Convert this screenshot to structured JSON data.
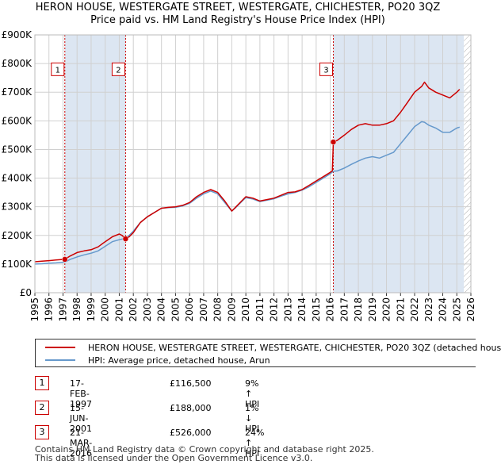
{
  "title_line1": "HERON HOUSE, WESTERGATE STREET, WESTERGATE, CHICHESTER, PO20 3QZ",
  "title_line2": "Price paid vs. HM Land Registry's House Price Index (HPI)",
  "colors": {
    "property": "#cc0000",
    "hpi": "#6699cc",
    "highlight": "#dce6f2",
    "grid": "#d0d0d0",
    "marker_border": "#cc0000",
    "hatch": "#b0b0b0"
  },
  "chart_data": {
    "type": "line",
    "x_range": [
      1995,
      2026
    ],
    "ylim": [
      0,
      900000
    ],
    "y_ticks": [
      {
        "value": 0,
        "label": "£0"
      },
      {
        "value": 100000,
        "label": "£100K"
      },
      {
        "value": 200000,
        "label": "£200K"
      },
      {
        "value": 300000,
        "label": "£300K"
      },
      {
        "value": 400000,
        "label": "£400K"
      },
      {
        "value": 500000,
        "label": "£500K"
      },
      {
        "value": 600000,
        "label": "£600K"
      },
      {
        "value": 700000,
        "label": "£700K"
      },
      {
        "value": 800000,
        "label": "£800K"
      },
      {
        "value": 900000,
        "label": "£900K"
      }
    ],
    "x_ticks": [
      "1995",
      "1996",
      "1997",
      "1998",
      "1999",
      "2000",
      "2001",
      "2002",
      "2003",
      "2004",
      "2005",
      "2006",
      "2007",
      "2008",
      "2009",
      "2010",
      "2011",
      "2012",
      "2013",
      "2014",
      "2015",
      "2016",
      "2017",
      "2018",
      "2019",
      "2020",
      "2021",
      "2022",
      "2023",
      "2024",
      "2025",
      "2026"
    ],
    "highlight_bands": [
      [
        1997.13,
        2001.45
      ],
      [
        2016.22,
        2025.5
      ]
    ],
    "hatch_from": 2025.5,
    "series": [
      {
        "name": "HERON HOUSE, WESTERGATE STREET, WESTERGATE, CHICHESTER, PO20 3QZ (detached hous",
        "x": [
          1995.0,
          1995.5,
          1996.0,
          1996.5,
          1997.13,
          1997.5,
          1998.0,
          1998.5,
          1999.0,
          1999.5,
          2000.0,
          2000.5,
          2001.0,
          2001.2,
          2001.45,
          2001.7,
          2002.0,
          2002.5,
          2003.0,
          2003.5,
          2004.0,
          2004.5,
          2005.0,
          2005.5,
          2006.0,
          2006.5,
          2007.0,
          2007.5,
          2008.0,
          2008.5,
          2009.0,
          2009.3,
          2009.7,
          2010.0,
          2010.5,
          2011.0,
          2011.5,
          2012.0,
          2012.5,
          2013.0,
          2013.5,
          2014.0,
          2014.5,
          2015.0,
          2015.5,
          2016.0,
          2016.15,
          2016.22,
          2016.5,
          2017.0,
          2017.5,
          2018.0,
          2018.5,
          2019.0,
          2019.5,
          2020.0,
          2020.5,
          2021.0,
          2021.5,
          2022.0,
          2022.5,
          2022.7,
          2023.0,
          2023.5,
          2024.0,
          2024.5,
          2025.0,
          2025.2
        ],
        "values": [
          108000,
          110000,
          112000,
          114000,
          116500,
          128000,
          140000,
          146000,
          150000,
          160000,
          178000,
          195000,
          205000,
          200000,
          188000,
          195000,
          210000,
          245000,
          265000,
          280000,
          295000,
          298000,
          300000,
          305000,
          315000,
          335000,
          350000,
          360000,
          350000,
          320000,
          285000,
          300000,
          320000,
          335000,
          330000,
          320000,
          325000,
          330000,
          340000,
          350000,
          352000,
          360000,
          375000,
          390000,
          405000,
          420000,
          425000,
          526000,
          532000,
          550000,
          570000,
          585000,
          590000,
          585000,
          585000,
          590000,
          600000,
          630000,
          665000,
          700000,
          720000,
          735000,
          715000,
          700000,
          690000,
          680000,
          700000,
          710000
        ]
      },
      {
        "name": "HPI: Average price, detached house, Arun",
        "x": [
          1995.0,
          1995.5,
          1996.0,
          1996.5,
          1997.13,
          1997.5,
          1998.0,
          1998.5,
          1999.0,
          1999.5,
          2000.0,
          2000.5,
          2001.0,
          2001.45,
          2001.7,
          2002.0,
          2002.5,
          2003.0,
          2003.5,
          2004.0,
          2004.5,
          2005.0,
          2005.5,
          2006.0,
          2006.5,
          2007.0,
          2007.5,
          2008.0,
          2008.5,
          2009.0,
          2009.3,
          2009.7,
          2010.0,
          2010.5,
          2011.0,
          2011.5,
          2012.0,
          2012.5,
          2013.0,
          2013.5,
          2014.0,
          2014.5,
          2015.0,
          2015.5,
          2016.0,
          2016.22,
          2016.5,
          2017.0,
          2017.5,
          2018.0,
          2018.5,
          2019.0,
          2019.5,
          2020.0,
          2020.5,
          2021.0,
          2021.5,
          2022.0,
          2022.5,
          2022.7,
          2023.0,
          2023.5,
          2024.0,
          2024.5,
          2025.0,
          2025.2
        ],
        "values": [
          100000,
          101000,
          103000,
          104000,
          107000,
          116000,
          125000,
          132000,
          138000,
          146000,
          162000,
          178000,
          185000,
          190000,
          200000,
          215000,
          245000,
          265000,
          280000,
          295000,
          297000,
          298000,
          303000,
          312000,
          330000,
          345000,
          355000,
          345000,
          315000,
          285000,
          298000,
          318000,
          332000,
          327000,
          318000,
          323000,
          328000,
          337000,
          345000,
          350000,
          358000,
          370000,
          385000,
          400000,
          415000,
          424000,
          425000,
          435000,
          448000,
          460000,
          470000,
          475000,
          470000,
          480000,
          490000,
          520000,
          550000,
          580000,
          597000,
          595000,
          585000,
          575000,
          560000,
          560000,
          575000,
          578000
        ]
      }
    ],
    "sales": [
      {
        "num": "1",
        "x": 1997.13,
        "value": 116500
      },
      {
        "num": "2",
        "x": 2001.45,
        "value": 188000
      },
      {
        "num": "3",
        "x": 2016.22,
        "value": 526000
      }
    ],
    "label_box_value": 780000
  },
  "legend": {
    "property_label": "HERON HOUSE, WESTERGATE STREET, WESTERGATE, CHICHESTER, PO20 3QZ (detached hous",
    "hpi_label": "HPI: Average price, detached house, Arun"
  },
  "transactions": [
    {
      "num": "1",
      "date": "17-FEB-1997",
      "price": "£116,500",
      "hpi": "9% ↑ HPI"
    },
    {
      "num": "2",
      "date": "15-JUN-2001",
      "price": "£188,000",
      "hpi": "1% ↓ HPI"
    },
    {
      "num": "3",
      "date": "21-MAR-2016",
      "price": "£526,000",
      "hpi": "24% ↑ HPI"
    }
  ],
  "footer": {
    "line1": "Contains HM Land Registry data © Crown copyright and database right 2025.",
    "line2": "This data is licensed under the Open Government Licence v3.0."
  }
}
